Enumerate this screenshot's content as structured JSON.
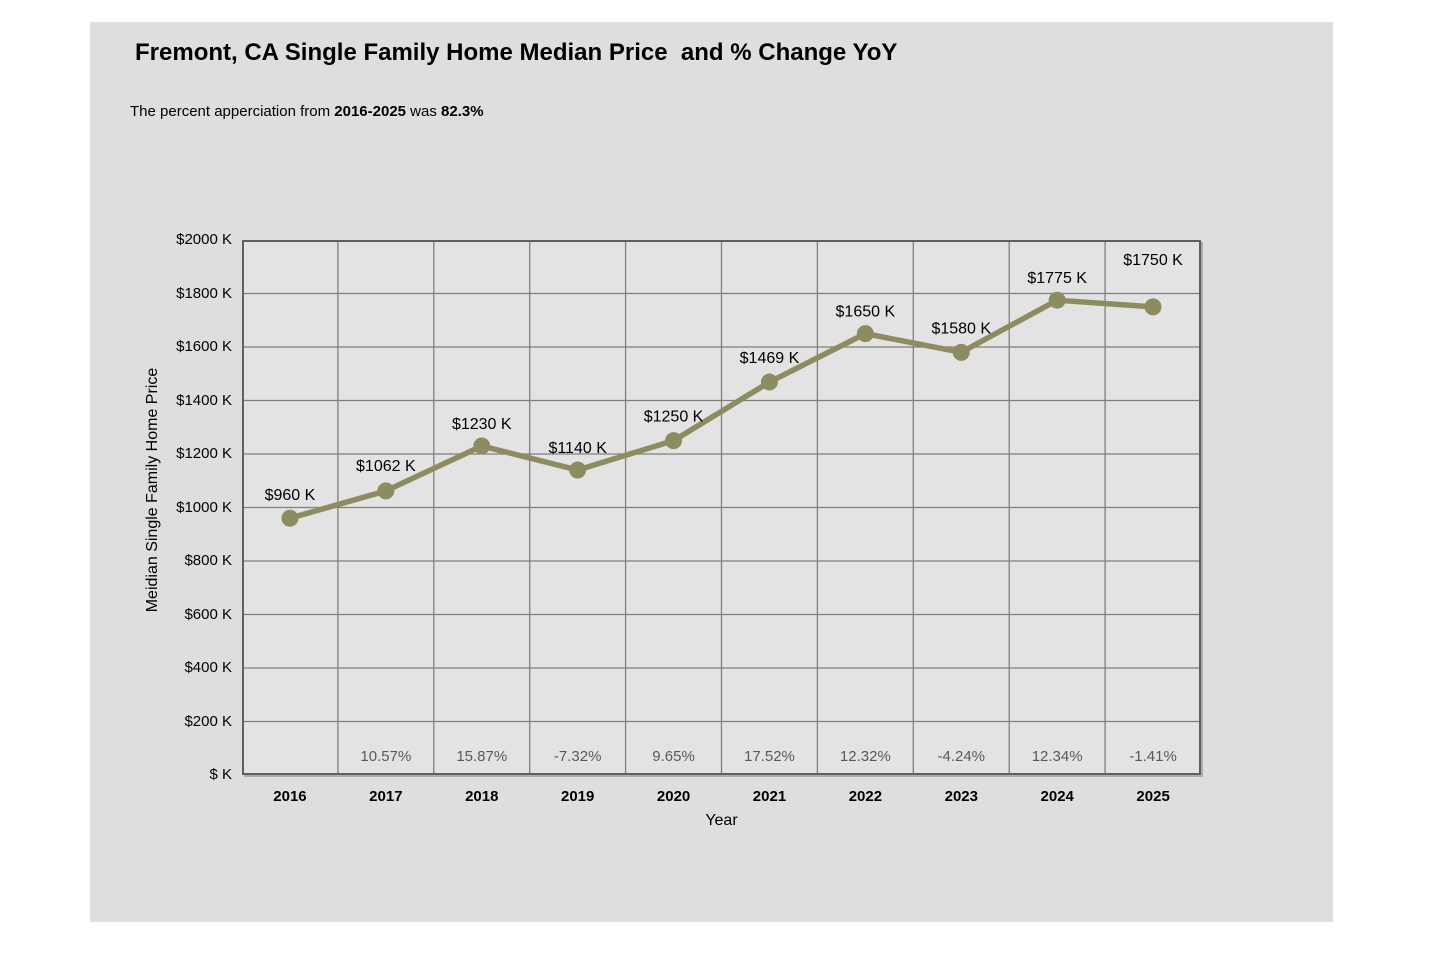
{
  "page": {
    "background": "#ffffff",
    "panel_background": "#dedede"
  },
  "header": {
    "title": "Fremont, CA Single Family Home Median Price  and % Change YoY",
    "subtitle_prefix": "The percent apperciation from ",
    "subtitle_range": "2016-2025",
    "subtitle_mid": " was ",
    "subtitle_value": "82.3%"
  },
  "chart_data": {
    "type": "line",
    "title": "Fremont, CA Single Family Home Median Price  and % Change YoY",
    "xlabel": "Year",
    "ylabel": "Meidian Single Family Home Price",
    "categories": [
      "2016",
      "2017",
      "2018",
      "2019",
      "2020",
      "2021",
      "2022",
      "2023",
      "2024",
      "2025"
    ],
    "series": [
      {
        "name": "Median Single Family Home Price ($K)",
        "values": [
          960,
          1062,
          1230,
          1140,
          1250,
          1469,
          1650,
          1580,
          1775,
          1750
        ],
        "point_labels": [
          "$960 K",
          "$1062 K",
          "$1230 K",
          "$1140 K",
          "$1250 K",
          "$1469 K",
          "$1650 K",
          "$1580 K",
          "$1775 K",
          "$1750 K"
        ]
      },
      {
        "name": "% Change YoY",
        "values": [
          null,
          10.57,
          15.87,
          -7.32,
          9.65,
          17.52,
          12.32,
          -4.24,
          12.34,
          -1.41
        ],
        "point_labels": [
          "",
          "10.57%",
          "15.87%",
          "-7.32%",
          "9.65%",
          "17.52%",
          "12.32%",
          "-4.24%",
          "12.34%",
          "-1.41%"
        ]
      }
    ],
    "ylim": [
      0,
      2000
    ],
    "y_tick_values": [
      2000,
      1800,
      1600,
      1400,
      1200,
      1000,
      800,
      600,
      400,
      200,
      0
    ],
    "y_tick_labels": [
      "$2000 K",
      "$1800 K",
      "$1600 K",
      "$1400 K",
      "$1200 K",
      "$1000 K",
      "$800 K",
      "$600 K",
      "$400 K",
      "$200 K",
      "$ K"
    ],
    "grid": true,
    "legend": false,
    "colors": {
      "line": "#8d8c60",
      "marker": "#8d8c60",
      "gridline": "#7f7f7f",
      "plot_border": "#5f5f5f",
      "pct_text": "#595959",
      "label_text": "#000000"
    }
  }
}
